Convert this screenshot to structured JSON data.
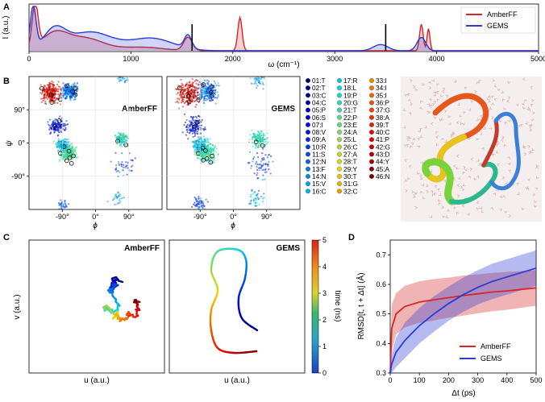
{
  "panels": {
    "a": "A",
    "b": "B",
    "c": "C",
    "d": "D"
  },
  "chart_data": [
    {
      "id": "A",
      "type": "area",
      "title": "",
      "xlabel": "ω (cm⁻¹)",
      "ylabel": "I (a.u.)",
      "xlim": [
        0,
        5000
      ],
      "xticks": [
        0,
        1000,
        2000,
        3000,
        4000,
        5000
      ],
      "legend_position": "top-right",
      "markers_x": [
        1600,
        3500
      ],
      "series": [
        {
          "name": "AmberFF",
          "color": "#d62728",
          "peaks": [
            {
              "center": 60,
              "height": 1.0,
              "width": 40
            },
            {
              "center": 250,
              "height": 0.38,
              "width": 180
            },
            {
              "center": 550,
              "height": 0.28,
              "width": 250
            },
            {
              "center": 1100,
              "height": 0.08,
              "width": 300
            },
            {
              "center": 1560,
              "height": 0.3,
              "width": 60
            },
            {
              "center": 2070,
              "height": 0.75,
              "width": 30
            },
            {
              "center": 3850,
              "height": 0.6,
              "width": 25
            },
            {
              "center": 3920,
              "height": 0.5,
              "width": 20
            }
          ]
        },
        {
          "name": "GEMS",
          "color": "#2a3cd6",
          "peaks": [
            {
              "center": 40,
              "height": 0.95,
              "width": 40
            },
            {
              "center": 250,
              "height": 0.45,
              "width": 150
            },
            {
              "center": 600,
              "height": 0.42,
              "width": 300
            },
            {
              "center": 1200,
              "height": 0.28,
              "width": 300
            },
            {
              "center": 1560,
              "height": 0.3,
              "width": 50
            },
            {
              "center": 3450,
              "height": 0.14,
              "width": 100
            },
            {
              "center": 3850,
              "height": 0.3,
              "width": 60
            }
          ]
        }
      ]
    },
    {
      "id": "B",
      "type": "scatter",
      "subplots": [
        "AmberFF",
        "GEMS"
      ],
      "xlabel": "ϕ",
      "ylabel": "ψ",
      "xlim": [
        -180,
        180
      ],
      "ylim": [
        -180,
        180
      ],
      "xticks": [
        "-90°",
        "0°",
        "90°"
      ],
      "yticks": [
        "90°",
        "0°",
        "-90°"
      ],
      "residues": [
        "01:T",
        "02:T",
        "03:C",
        "04:C",
        "05:P",
        "06:S",
        "07:I",
        "08:V",
        "09:A",
        "10:R",
        "11:S",
        "12:N",
        "13:F",
        "14:N",
        "15:V",
        "16:C",
        "17:R",
        "18:L",
        "19:P",
        "20:G",
        "21:T",
        "22:P",
        "23:E",
        "24:A",
        "25:L",
        "26:C",
        "27:A",
        "28:T",
        "29:Y",
        "30:T",
        "31:G",
        "32:C",
        "33:I",
        "34:I",
        "35:I",
        "36:P",
        "37:G",
        "38:A",
        "39:T",
        "40:C",
        "41:P",
        "42:G",
        "43:D",
        "44:Y",
        "45:A",
        "46:N"
      ],
      "colormap": "jet"
    },
    {
      "id": "C",
      "type": "line",
      "subplots": [
        "AmberFF",
        "GEMS"
      ],
      "xlabel": "u (a.u.)",
      "ylabel": "v (a.u.)",
      "colorbar": {
        "label": "time (ns)",
        "ticks": [
          0,
          1,
          2,
          3,
          4,
          5
        ],
        "range": [
          0,
          5
        ]
      }
    },
    {
      "id": "D",
      "type": "line",
      "xlabel": "Δt (ps)",
      "ylabel": "RMSD[t, t + Δt] (Å)",
      "xlim": [
        0,
        500
      ],
      "ylim": [
        0.3,
        0.75
      ],
      "xticks": [
        0,
        100,
        200,
        300,
        400,
        500
      ],
      "yticks": [
        0.3,
        0.4,
        0.5,
        0.6,
        0.7
      ],
      "legend_position": "bottom-right",
      "series": [
        {
          "name": "AmberFF",
          "color": "#d62728",
          "x": [
            0,
            5,
            20,
            50,
            100,
            150,
            200,
            250,
            300,
            350,
            400,
            450,
            500
          ],
          "y": [
            0.3,
            0.45,
            0.5,
            0.525,
            0.54,
            0.548,
            0.555,
            0.562,
            0.568,
            0.574,
            0.578,
            0.583,
            0.588
          ],
          "band": [
            0.05,
            0.08,
            0.07,
            0.07,
            0.07,
            0.07,
            0.068,
            0.068,
            0.066,
            0.065,
            0.064,
            0.062,
            0.06
          ]
        },
        {
          "name": "GEMS",
          "color": "#2a3cd6",
          "x": [
            0,
            5,
            20,
            50,
            100,
            150,
            200,
            250,
            300,
            350,
            400,
            450,
            500
          ],
          "y": [
            0.3,
            0.33,
            0.37,
            0.41,
            0.46,
            0.5,
            0.535,
            0.565,
            0.59,
            0.61,
            0.625,
            0.64,
            0.655
          ],
          "band": [
            0.01,
            0.03,
            0.05,
            0.06,
            0.06,
            0.06,
            0.058,
            0.058,
            0.058,
            0.06,
            0.06,
            0.06,
            0.06
          ]
        }
      ]
    }
  ]
}
